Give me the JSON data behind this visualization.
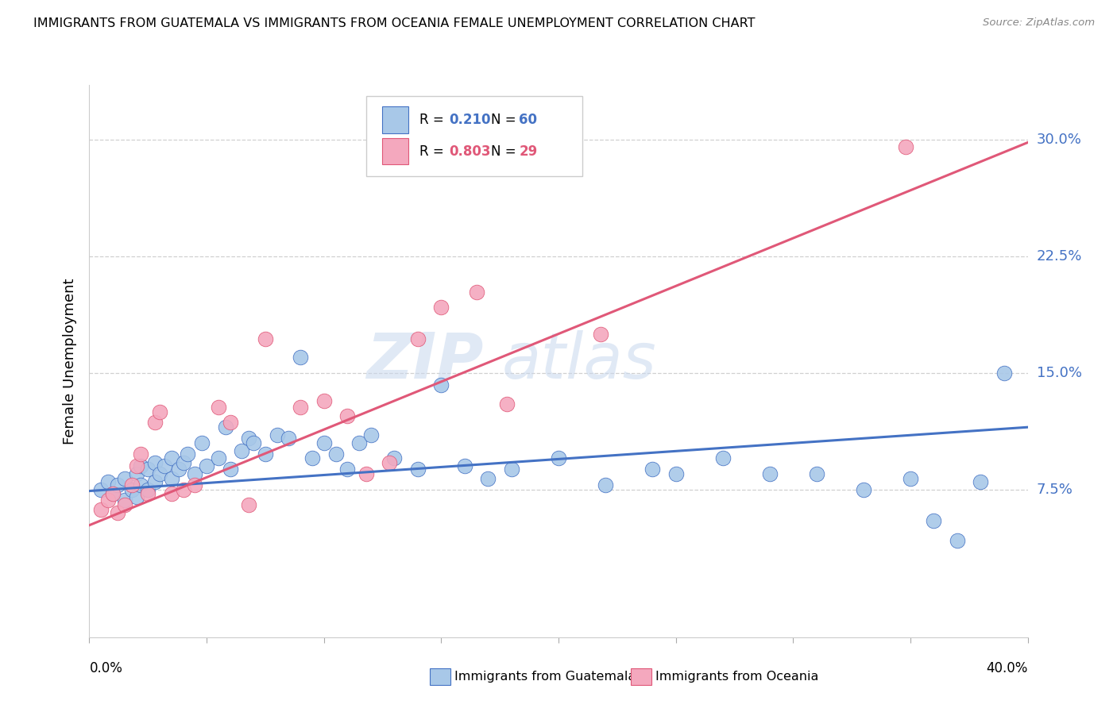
{
  "title": "IMMIGRANTS FROM GUATEMALA VS IMMIGRANTS FROM OCEANIA FEMALE UNEMPLOYMENT CORRELATION CHART",
  "source": "Source: ZipAtlas.com",
  "ylabel": "Female Unemployment",
  "yticks_labels": [
    "7.5%",
    "15.0%",
    "22.5%",
    "30.0%"
  ],
  "ytick_vals": [
    0.075,
    0.15,
    0.225,
    0.3
  ],
  "xlim": [
    0.0,
    0.4
  ],
  "ylim": [
    -0.02,
    0.335
  ],
  "color_blue": "#a8c8e8",
  "color_pink": "#f4a8be",
  "line_blue": "#4472c4",
  "line_pink": "#e05878",
  "watermark_zip": "ZIP",
  "watermark_atlas": "atlas",
  "blue_x": [
    0.005,
    0.008,
    0.01,
    0.012,
    0.015,
    0.015,
    0.018,
    0.02,
    0.02,
    0.022,
    0.022,
    0.025,
    0.025,
    0.028,
    0.028,
    0.03,
    0.032,
    0.035,
    0.035,
    0.038,
    0.04,
    0.042,
    0.045,
    0.048,
    0.05,
    0.055,
    0.058,
    0.06,
    0.065,
    0.068,
    0.07,
    0.075,
    0.08,
    0.085,
    0.09,
    0.095,
    0.1,
    0.105,
    0.11,
    0.115,
    0.12,
    0.13,
    0.14,
    0.15,
    0.16,
    0.17,
    0.18,
    0.2,
    0.22,
    0.24,
    0.25,
    0.27,
    0.29,
    0.31,
    0.33,
    0.35,
    0.36,
    0.37,
    0.38,
    0.39
  ],
  "blue_y": [
    0.075,
    0.08,
    0.072,
    0.078,
    0.068,
    0.082,
    0.075,
    0.07,
    0.085,
    0.078,
    0.09,
    0.075,
    0.088,
    0.08,
    0.092,
    0.085,
    0.09,
    0.082,
    0.095,
    0.088,
    0.092,
    0.098,
    0.085,
    0.105,
    0.09,
    0.095,
    0.115,
    0.088,
    0.1,
    0.108,
    0.105,
    0.098,
    0.11,
    0.108,
    0.16,
    0.095,
    0.105,
    0.098,
    0.088,
    0.105,
    0.11,
    0.095,
    0.088,
    0.142,
    0.09,
    0.082,
    0.088,
    0.095,
    0.078,
    0.088,
    0.085,
    0.095,
    0.085,
    0.085,
    0.075,
    0.082,
    0.055,
    0.042,
    0.08,
    0.15
  ],
  "pink_x": [
    0.005,
    0.008,
    0.01,
    0.012,
    0.015,
    0.018,
    0.02,
    0.022,
    0.025,
    0.028,
    0.03,
    0.035,
    0.04,
    0.045,
    0.055,
    0.06,
    0.068,
    0.075,
    0.09,
    0.1,
    0.11,
    0.118,
    0.128,
    0.14,
    0.15,
    0.165,
    0.178,
    0.218,
    0.348
  ],
  "pink_y": [
    0.062,
    0.068,
    0.072,
    0.06,
    0.065,
    0.078,
    0.09,
    0.098,
    0.072,
    0.118,
    0.125,
    0.072,
    0.075,
    0.078,
    0.128,
    0.118,
    0.065,
    0.172,
    0.128,
    0.132,
    0.122,
    0.085,
    0.092,
    0.172,
    0.192,
    0.202,
    0.13,
    0.175,
    0.295
  ],
  "blue_line_x": [
    0.0,
    0.4
  ],
  "blue_line_y": [
    0.074,
    0.115
  ],
  "pink_line_x": [
    0.0,
    0.4
  ],
  "pink_line_y": [
    0.052,
    0.298
  ]
}
